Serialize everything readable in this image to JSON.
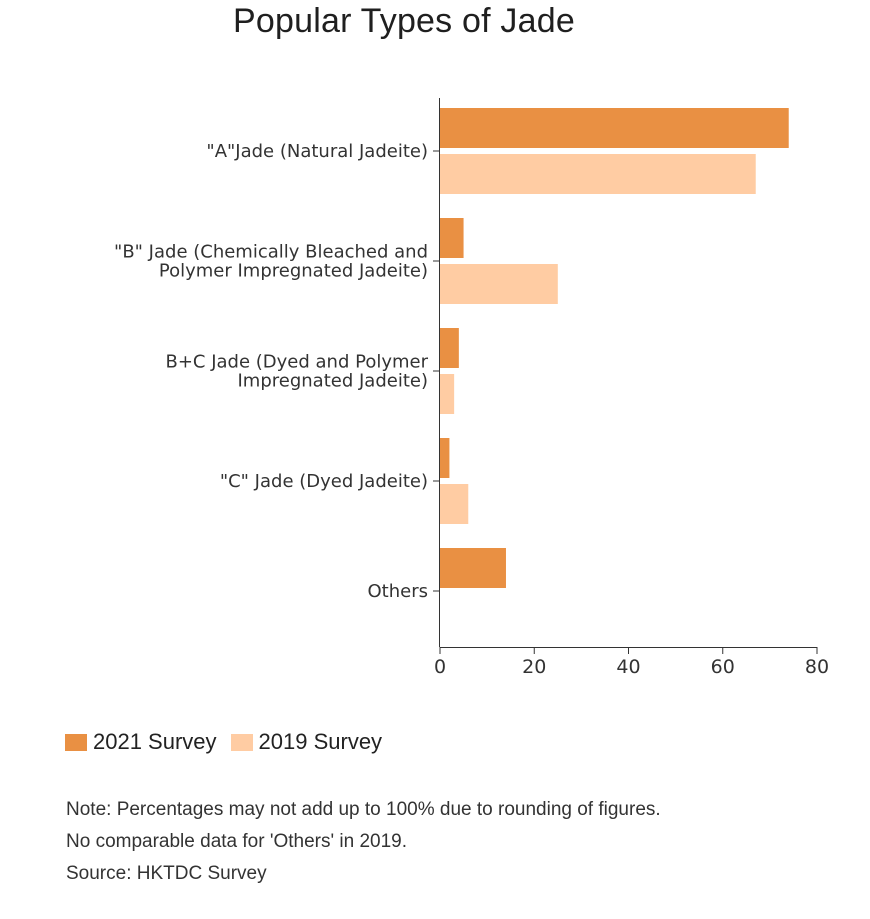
{
  "chart_data": {
    "type": "bar",
    "orientation": "horizontal",
    "title": "Popular Types of Jade",
    "categories": [
      "\"A\"Jade (Natural Jadeite)",
      "\"B\" Jade (Chemically Bleached and Polymer Impregnated Jadeite)",
      "B+C Jade (Dyed and Polymer Impregnated Jadeite)",
      "\"C\" Jade (Dyed Jadeite)",
      "Others"
    ],
    "category_lines": [
      [
        "\"A\"Jade (Natural Jadeite)"
      ],
      [
        "\"B\" Jade (Chemically Bleached and",
        "Polymer Impregnated Jadeite)"
      ],
      [
        "B+C Jade (Dyed and Polymer",
        "Impregnated Jadeite)"
      ],
      [
        "\"C\" Jade (Dyed Jadeite)"
      ],
      [
        "Others"
      ]
    ],
    "series": [
      {
        "name": "2021 Survey",
        "color": "#E99043",
        "values": [
          74,
          5,
          4,
          2,
          14
        ]
      },
      {
        "name": "2019 Survey",
        "color": "#FFCCA3",
        "values": [
          67,
          25,
          3,
          6,
          null
        ]
      }
    ],
    "xlim": [
      0,
      80
    ],
    "xticks": [
      0,
      20,
      40,
      60,
      80
    ],
    "xlabel": "",
    "ylabel": "",
    "grid": false,
    "legend_position": "bottom-left"
  },
  "notes": [
    "Note: Percentages may not add up to 100% due to rounding of figures.",
    "No comparable data for 'Others' in 2019.",
    "Source: HKTDC Survey"
  ]
}
